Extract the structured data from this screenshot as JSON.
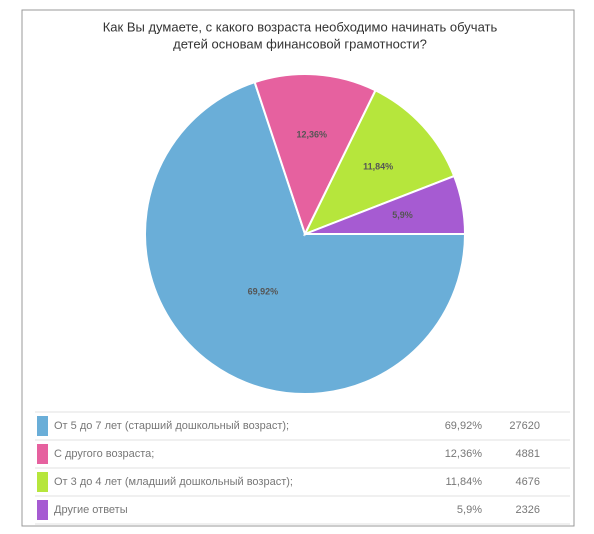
{
  "chart_data": {
    "type": "pie",
    "title": [
      "Как Вы думаете, с какого возраста необходимо начинать обучать",
      "детей основам финансовой грамотности?"
    ],
    "categories": [
      "От 5 до 7 лет (старший дошкольный возраст);",
      "С другого возраста;",
      "От 3 до 4 лет (младший дошкольный возраст);",
      "Другие ответы"
    ],
    "values": [
      69.92,
      12.36,
      11.84,
      5.9
    ],
    "value_labels": [
      "69,92%",
      "12,36%",
      "11,84%",
      "5,9%"
    ],
    "counts": [
      27620,
      4881,
      4676,
      2326
    ],
    "colors": [
      "#6aaed8",
      "#e6619f",
      "#b6e63c",
      "#a65bd2"
    ]
  }
}
